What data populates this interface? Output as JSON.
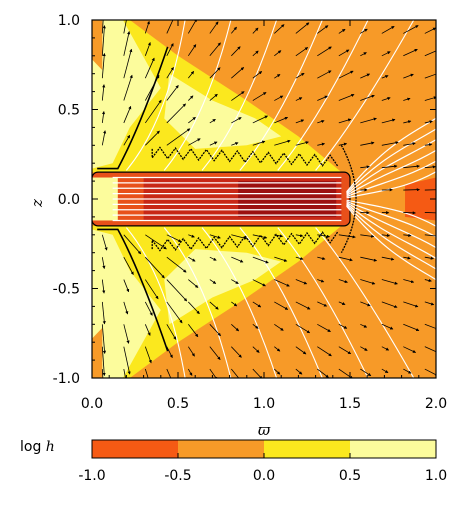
{
  "chart_data": {
    "type": "heatmap",
    "xlabel": "ϖ",
    "ylabel": "z",
    "xlim": [
      0.0,
      2.0
    ],
    "ylim": [
      -1.0,
      1.0
    ],
    "x_ticks": [
      "0.0",
      "0.5",
      "1.0",
      "1.5",
      "2.0"
    ],
    "x_tick_values": [
      0.0,
      0.5,
      1.0,
      1.5,
      2.0
    ],
    "y_ticks": [
      "-1.0",
      "-0.5",
      "0.0",
      "0.5",
      "1.0"
    ],
    "y_tick_values": [
      -1.0,
      -0.5,
      0.0,
      0.5,
      1.0
    ],
    "colorbar": {
      "label_prefix": "log ",
      "label_var": "h",
      "range": [
        -1.0,
        1.0
      ],
      "tick_labels": [
        "-1.0",
        "-0.5",
        "0.0",
        "0.5",
        "1.0"
      ],
      "levels": [
        {
          "from": -1.0,
          "to": -0.5,
          "color": "#f55a14"
        },
        {
          "from": -0.5,
          "to": 0.0,
          "color": "#f79a28"
        },
        {
          "from": 0.0,
          "to": 0.5,
          "color": "#fbe81e"
        },
        {
          "from": 0.5,
          "to": 1.0,
          "color": "#fcfc9c"
        }
      ]
    },
    "regions": {
      "disk_core_color": "#9c1010",
      "disk_inner_color": "#c82816",
      "disk_edge_color": "#e8501a"
    },
    "disk": {
      "x_range": [
        0.0,
        1.5
      ],
      "z_range": [
        -0.15,
        0.15
      ]
    },
    "contour_color": "#000000",
    "field_line_color": "#ffffff",
    "vector_color": "#000000",
    "grid": false
  }
}
